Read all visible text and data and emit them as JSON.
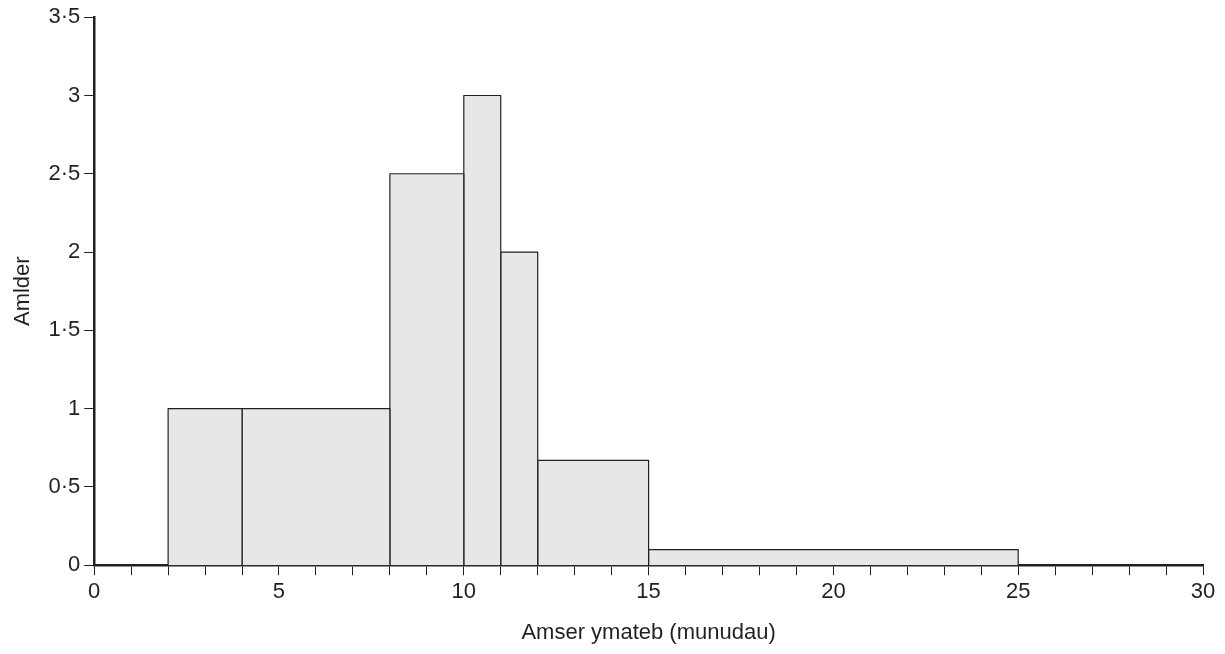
{
  "chart_data": {
    "type": "histogram",
    "bins": [
      2,
      4,
      8,
      10,
      11,
      12,
      15,
      25
    ],
    "values": [
      1,
      1,
      2.5,
      3,
      2,
      0.67,
      0.1
    ],
    "color": "#e6e7e8",
    "xlabel": "Amser ymateb (munudau)",
    "ylabel": "Amlder",
    "xlim": [
      0,
      30
    ],
    "xticks": [
      0,
      {
        "value": 1,
        "label": null
      },
      {
        "value": 2,
        "label": null
      },
      {
        "value": 3,
        "label": null
      },
      {
        "value": 4,
        "label": null
      },
      5,
      {
        "value": 6,
        "label": null
      },
      {
        "value": 7,
        "label": null
      },
      {
        "value": 8,
        "label": null
      },
      {
        "value": 9,
        "label": null
      },
      10,
      {
        "value": 11,
        "label": null
      },
      {
        "value": 12,
        "label": null
      },
      {
        "value": 13,
        "label": null
      },
      {
        "value": 14,
        "label": null
      },
      15,
      {
        "value": 16,
        "label": null
      },
      {
        "value": 17,
        "label": null
      },
      {
        "value": 18,
        "label": null
      },
      {
        "value": 19,
        "label": null
      },
      20,
      {
        "value": 21,
        "label": null
      },
      {
        "value": 22,
        "label": null
      },
      {
        "value": 23,
        "label": null
      },
      {
        "value": 24,
        "label": null
      },
      25,
      {
        "value": 26,
        "label": null
      },
      {
        "value": 27,
        "label": null
      },
      {
        "value": 28,
        "label": null
      },
      {
        "value": 29,
        "label": null
      },
      30
    ],
    "ylim": [
      0,
      3.5
    ],
    "yticks": [
      0,
      {
        "value": 0.5,
        "label": "0·5"
      },
      1,
      {
        "value": 1.5,
        "label": "1·5"
      },
      2,
      {
        "value": 2.5,
        "label": "2·5"
      },
      3,
      {
        "value": 3.5,
        "label": "3·5"
      }
    ],
    "grid": false,
    "legend": false
  }
}
